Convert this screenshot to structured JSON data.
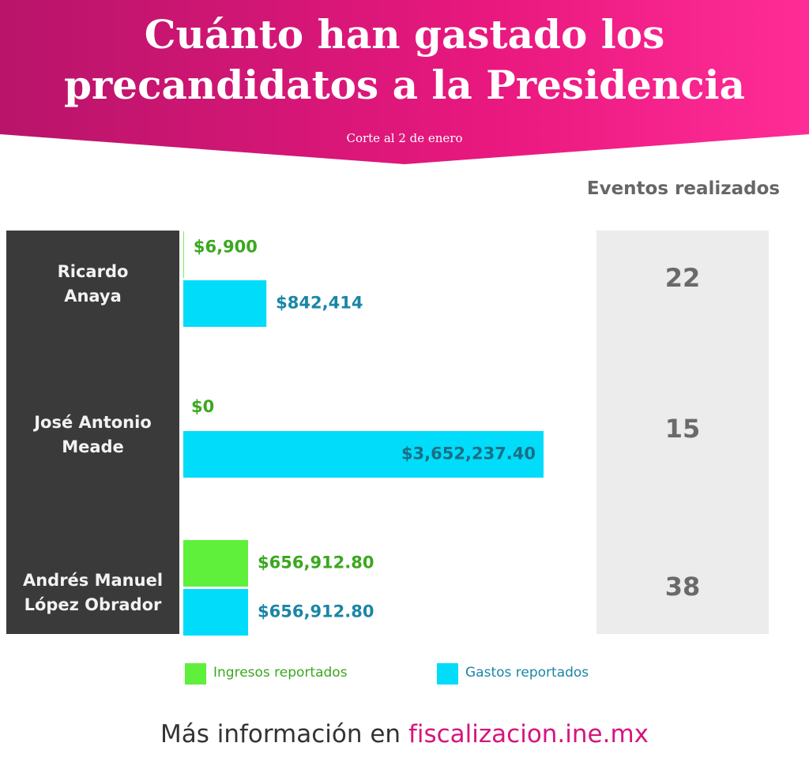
{
  "chart_data": {
    "type": "bar",
    "title": "Cuánto han gastado los\nprecandidatos a la Presidencia",
    "subtitle": "Corte al 2 de enero",
    "categories": [
      "Ricardo\nAnaya",
      "José Antonio\nMeade",
      "Andrés Manuel\nLópez Obrador"
    ],
    "series": [
      {
        "name": "Ingresos reportados",
        "color": "#5ef03a",
        "label_color": "#3aa81e",
        "values": [
          6900,
          0,
          656912.8
        ],
        "value_labels": [
          "$6,900",
          "$0",
          "$656,912.80"
        ]
      },
      {
        "name": "Gastos reportados",
        "color": "#00dcfa",
        "label_color": "#1a86a6",
        "values": [
          842414,
          3652237.4,
          656912.8
        ],
        "value_labels": [
          "$842,414",
          "$3,652,237.40",
          "$656,912.80"
        ]
      }
    ],
    "events": {
      "title": "Eventos realizados",
      "values": [
        22,
        15,
        38
      ]
    },
    "footer": {
      "text": "Más información en",
      "link": "fiscalizacion.ine.mx"
    }
  }
}
